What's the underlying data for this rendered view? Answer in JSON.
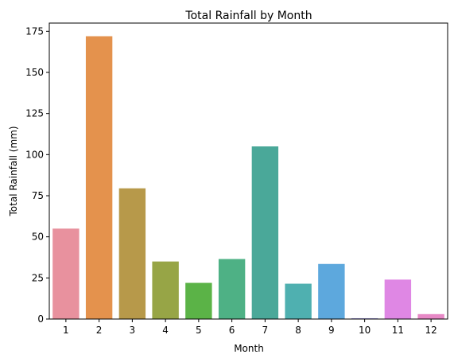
{
  "chart_data": {
    "type": "bar",
    "title": "Total Rainfall by Month",
    "xlabel": "Month",
    "ylabel": "Total Rainfall (mm)",
    "categories": [
      "1",
      "2",
      "3",
      "4",
      "5",
      "6",
      "7",
      "8",
      "9",
      "10",
      "11",
      "12"
    ],
    "values": [
      55,
      172,
      79.5,
      35,
      22,
      36.5,
      105,
      21.5,
      33.5,
      0.5,
      24,
      3
    ],
    "ylim": [
      0,
      180
    ],
    "yticks": [
      0,
      25,
      50,
      75,
      100,
      125,
      150,
      175
    ],
    "grid": false,
    "colors": [
      "#e8919e",
      "#e4924d",
      "#b7994a",
      "#97a546",
      "#5bb347",
      "#4eb185",
      "#4aa899",
      "#4fb0b0",
      "#5da8dd",
      "#a59ee6",
      "#df87e4",
      "#e789c6"
    ]
  }
}
